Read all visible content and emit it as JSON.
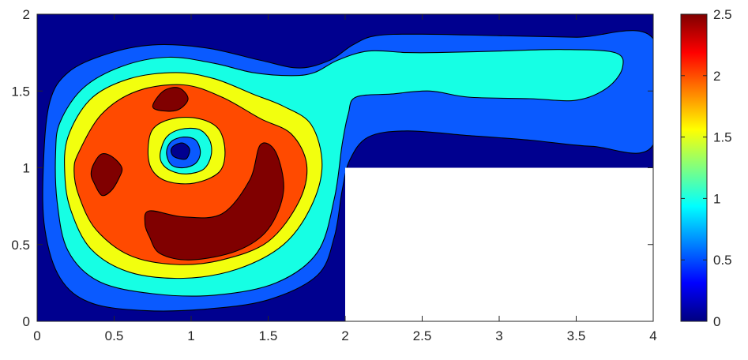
{
  "chart_data": {
    "type": "heatmap",
    "subtype": "filled-contour",
    "title": "",
    "xlabel": "",
    "ylabel": "",
    "xlim": [
      0,
      4
    ],
    "ylim": [
      0,
      2
    ],
    "xticks": [
      "0",
      "0.5",
      "1",
      "1.5",
      "2",
      "2.5",
      "3",
      "3.5",
      "4"
    ],
    "yticks": [
      "0",
      "0.5",
      "1",
      "1.5",
      "2"
    ],
    "colorbar": {
      "colormap": "jet",
      "limits": [
        0,
        2.5
      ],
      "ticks": [
        "0",
        "0.5",
        "1",
        "1.5",
        "2",
        "2.5"
      ],
      "placement": "right"
    },
    "contour_levels": [
      0,
      0.5,
      1,
      1.5,
      2,
      2.5
    ],
    "level_colors": [
      "#00008F",
      "#0A5AFF",
      "#16FFE4",
      "#F2FF0E",
      "#FF4A00",
      "#800000"
    ],
    "masked_region": {
      "x": [
        2,
        4
      ],
      "y": [
        0,
        1
      ],
      "color": "#ffffff"
    },
    "regions": [
      {
        "level_index": 0,
        "points": [
          [
            0,
            0
          ],
          [
            4,
            0
          ],
          [
            4,
            2
          ],
          [
            0,
            2
          ]
        ]
      },
      {
        "level_index": 1,
        "points": [
          [
            0.08,
            1.42
          ],
          [
            0.2,
            1.62
          ],
          [
            0.45,
            1.74
          ],
          [
            0.75,
            1.8
          ],
          [
            1.1,
            1.78
          ],
          [
            1.45,
            1.7
          ],
          [
            1.7,
            1.65
          ],
          [
            1.9,
            1.7
          ],
          [
            2.05,
            1.8
          ],
          [
            2.2,
            1.86
          ],
          [
            2.5,
            1.87
          ],
          [
            3,
            1.86
          ],
          [
            3.5,
            1.85
          ],
          [
            4,
            1.84
          ],
          [
            4,
            1.15
          ],
          [
            3.6,
            1.14
          ],
          [
            3.2,
            1.18
          ],
          [
            2.8,
            1.21
          ],
          [
            2.4,
            1.24
          ],
          [
            2.15,
            1.2
          ],
          [
            2.03,
            1.05
          ],
          [
            1.98,
            0.85
          ],
          [
            1.93,
            0.55
          ],
          [
            1.82,
            0.3
          ],
          [
            1.5,
            0.14
          ],
          [
            1.1,
            0.08
          ],
          [
            0.7,
            0.07
          ],
          [
            0.35,
            0.12
          ],
          [
            0.15,
            0.28
          ],
          [
            0.05,
            0.6
          ],
          [
            0.04,
            1.0
          ]
        ]
      },
      {
        "level_index": 2,
        "points": [
          [
            0.15,
            1.3
          ],
          [
            0.3,
            1.52
          ],
          [
            0.55,
            1.66
          ],
          [
            0.85,
            1.72
          ],
          [
            1.15,
            1.68
          ],
          [
            1.4,
            1.62
          ],
          [
            1.65,
            1.6
          ],
          [
            1.8,
            1.62
          ],
          [
            1.95,
            1.7
          ],
          [
            2.15,
            1.76
          ],
          [
            2.4,
            1.75
          ],
          [
            2.6,
            1.75
          ],
          [
            3,
            1.76
          ],
          [
            3.4,
            1.77
          ],
          [
            3.75,
            1.75
          ],
          [
            3.8,
            1.65
          ],
          [
            3.7,
            1.52
          ],
          [
            3.5,
            1.44
          ],
          [
            3.2,
            1.45
          ],
          [
            2.8,
            1.46
          ],
          [
            2.55,
            1.5
          ],
          [
            2.3,
            1.48
          ],
          [
            2.07,
            1.46
          ],
          [
            2.02,
            1.35
          ],
          [
            1.98,
            1.15
          ],
          [
            1.93,
            0.8
          ],
          [
            1.82,
            0.45
          ],
          [
            1.55,
            0.25
          ],
          [
            1.15,
            0.17
          ],
          [
            0.75,
            0.18
          ],
          [
            0.4,
            0.26
          ],
          [
            0.2,
            0.46
          ],
          [
            0.13,
            0.78
          ],
          [
            0.12,
            1.1
          ]
        ]
      },
      {
        "level_index": 3,
        "points": [
          [
            0.2,
            1.2
          ],
          [
            0.35,
            1.45
          ],
          [
            0.6,
            1.58
          ],
          [
            0.9,
            1.62
          ],
          [
            1.15,
            1.58
          ],
          [
            1.4,
            1.48
          ],
          [
            1.6,
            1.4
          ],
          [
            1.78,
            1.28
          ],
          [
            1.85,
            1.02
          ],
          [
            1.78,
            0.75
          ],
          [
            1.6,
            0.5
          ],
          [
            1.3,
            0.34
          ],
          [
            0.95,
            0.28
          ],
          [
            0.6,
            0.32
          ],
          [
            0.35,
            0.47
          ],
          [
            0.22,
            0.72
          ],
          [
            0.18,
            0.95
          ]
        ]
      },
      {
        "level_index": 4,
        "points": [
          [
            0.27,
            1.1
          ],
          [
            0.42,
            1.35
          ],
          [
            0.65,
            1.5
          ],
          [
            0.95,
            1.54
          ],
          [
            1.2,
            1.46
          ],
          [
            1.45,
            1.32
          ],
          [
            1.65,
            1.22
          ],
          [
            1.75,
            1.02
          ],
          [
            1.7,
            0.78
          ],
          [
            1.5,
            0.52
          ],
          [
            1.2,
            0.4
          ],
          [
            0.9,
            0.37
          ],
          [
            0.6,
            0.43
          ],
          [
            0.38,
            0.6
          ],
          [
            0.27,
            0.82
          ],
          [
            0.24,
            0.98
          ]
        ]
      },
      {
        "level_index": 5,
        "points": [
          [
            0.75,
            1.4
          ],
          [
            0.82,
            1.5
          ],
          [
            0.92,
            1.52
          ],
          [
            0.98,
            1.45
          ],
          [
            0.92,
            1.38
          ],
          [
            0.82,
            1.37
          ]
        ]
      },
      {
        "level_index": 5,
        "points": [
          [
            0.37,
            1.03
          ],
          [
            0.42,
            1.09
          ],
          [
            0.49,
            1.07
          ],
          [
            0.55,
            1.0
          ],
          [
            0.53,
            0.93
          ],
          [
            0.48,
            0.85
          ],
          [
            0.42,
            0.82
          ],
          [
            0.37,
            0.9
          ],
          [
            0.35,
            0.96
          ]
        ]
      },
      {
        "level_index": 5,
        "points": [
          [
            0.73,
            0.72
          ],
          [
            0.95,
            0.68
          ],
          [
            1.2,
            0.7
          ],
          [
            1.38,
            0.92
          ],
          [
            1.45,
            1.15
          ],
          [
            1.55,
            1.1
          ],
          [
            1.6,
            0.85
          ],
          [
            1.5,
            0.6
          ],
          [
            1.3,
            0.46
          ],
          [
            1.0,
            0.4
          ],
          [
            0.8,
            0.44
          ],
          [
            0.73,
            0.55
          ],
          [
            0.7,
            0.64
          ]
        ]
      },
      {
        "level_index": 3,
        "points": [
          [
            0.72,
            1.1
          ],
          [
            0.75,
            1.25
          ],
          [
            0.88,
            1.32
          ],
          [
            1.05,
            1.32
          ],
          [
            1.18,
            1.25
          ],
          [
            1.22,
            1.1
          ],
          [
            1.18,
            0.97
          ],
          [
            1.02,
            0.9
          ],
          [
            0.85,
            0.91
          ],
          [
            0.75,
            0.98
          ]
        ]
      },
      {
        "level_index": 2,
        "points": [
          [
            0.8,
            1.1
          ],
          [
            0.84,
            1.2
          ],
          [
            0.93,
            1.25
          ],
          [
            1.05,
            1.25
          ],
          [
            1.12,
            1.18
          ],
          [
            1.13,
            1.08
          ],
          [
            1.08,
            0.99
          ],
          [
            0.97,
            0.96
          ],
          [
            0.87,
            0.98
          ],
          [
            0.81,
            1.03
          ]
        ]
      },
      {
        "level_index": 1,
        "points": [
          [
            0.84,
            1.1
          ],
          [
            0.87,
            1.17
          ],
          [
            0.95,
            1.2
          ],
          [
            1.03,
            1.18
          ],
          [
            1.06,
            1.1
          ],
          [
            1.03,
            1.03
          ],
          [
            0.95,
            1.0
          ],
          [
            0.87,
            1.02
          ]
        ]
      },
      {
        "level_index": 0,
        "points": [
          [
            0.87,
            1.12
          ],
          [
            0.9,
            1.15
          ],
          [
            0.95,
            1.16
          ],
          [
            0.99,
            1.12
          ],
          [
            0.97,
            1.06
          ],
          [
            0.92,
            1.06
          ],
          [
            0.88,
            1.08
          ]
        ]
      }
    ]
  }
}
